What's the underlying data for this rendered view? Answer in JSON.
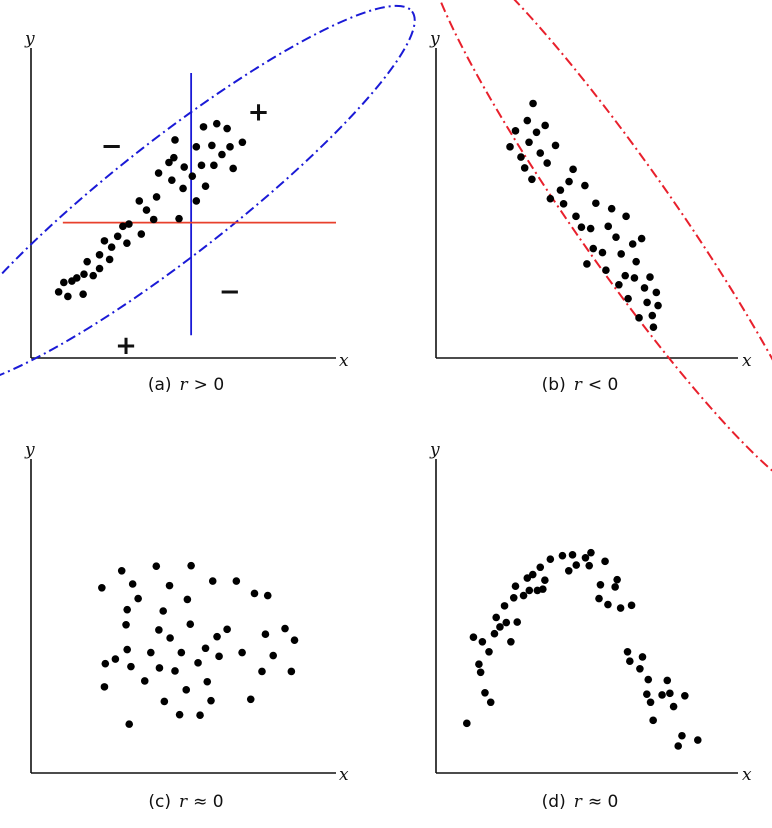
{
  "chart_data": [
    {
      "type": "scatter",
      "panel_label": "(a)",
      "caption_var": "r",
      "caption_relation": "> 0",
      "xlabel": "x",
      "ylabel": "y",
      "xlim": [
        0,
        100
      ],
      "ylim": [
        0,
        100
      ],
      "ellipse": {
        "color": "#1a1ad6",
        "style": "dash-dot",
        "cx": 50.1,
        "cy": 56.7,
        "rx": 64,
        "ry": 13,
        "angle": -38
      },
      "vline": {
        "x": 55.6,
        "color": "#1a1ad6",
        "y0": 8,
        "y1": 100
      },
      "hline": {
        "y": 47.5,
        "color": "#e8402c",
        "x0": 18,
        "x1": 100
      },
      "quadrant_signs": [
        {
          "text": "+",
          "x": 79,
          "y": 86
        },
        {
          "text": "−",
          "x": 28,
          "y": 74
        },
        {
          "text": "−",
          "x": 69,
          "y": 23
        },
        {
          "text": "+",
          "x": 33,
          "y": 4
        }
      ],
      "points": [
        [
          9.6,
          23.2
        ],
        [
          11.4,
          26.5
        ],
        [
          12.8,
          21.6
        ],
        [
          14.2,
          27.0
        ],
        [
          15.9,
          28.1
        ],
        [
          18.1,
          22.4
        ],
        [
          18.4,
          29.4
        ],
        [
          19.5,
          33.8
        ],
        [
          21.6,
          28.9
        ],
        [
          23.8,
          31.4
        ],
        [
          23.8,
          36.2
        ],
        [
          25.5,
          41.1
        ],
        [
          27.3,
          34.6
        ],
        [
          28.0,
          38.9
        ],
        [
          30.1,
          42.7
        ],
        [
          31.9,
          46.2
        ],
        [
          33.3,
          40.3
        ],
        [
          34.0,
          47.0
        ],
        [
          37.6,
          55.1
        ],
        [
          38.3,
          43.5
        ],
        [
          40.1,
          51.9
        ],
        [
          42.6,
          48.6
        ],
        [
          43.6,
          56.5
        ],
        [
          44.3,
          64.9
        ],
        [
          47.9,
          68.6
        ],
        [
          48.9,
          62.4
        ],
        [
          49.6,
          70.3
        ],
        [
          50.0,
          76.5
        ],
        [
          51.4,
          48.9
        ],
        [
          52.8,
          59.5
        ],
        [
          53.2,
          67.0
        ],
        [
          56.0,
          63.8
        ],
        [
          57.4,
          74.1
        ],
        [
          57.4,
          55.1
        ],
        [
          59.2,
          67.6
        ],
        [
          59.9,
          81.1
        ],
        [
          60.6,
          60.3
        ],
        [
          62.8,
          74.6
        ],
        [
          63.5,
          67.6
        ],
        [
          64.5,
          82.2
        ],
        [
          66.3,
          71.4
        ],
        [
          68.1,
          80.5
        ],
        [
          69.1,
          74.1
        ],
        [
          70.2,
          66.5
        ],
        [
          73.4,
          75.7
        ]
      ]
    },
    {
      "type": "scatter",
      "panel_label": "(b)",
      "caption_var": "r",
      "caption_relation": "< 0",
      "xlabel": "x",
      "ylabel": "y",
      "xlim": [
        0,
        100
      ],
      "ylim": [
        0,
        100
      ],
      "ellipse": {
        "color": "#e8202c",
        "style": "dash-dot",
        "cx": 65.5,
        "cy": 49.5,
        "rx": 72,
        "ry": 11,
        "angle": 55
      },
      "points": [
        [
          25.7,
          74.1
        ],
        [
          27.6,
          79.7
        ],
        [
          29.5,
          70.5
        ],
        [
          30.8,
          66.7
        ],
        [
          31.7,
          83.3
        ],
        [
          32.3,
          75.7
        ],
        [
          33.7,
          89.3
        ],
        [
          33.3,
          62.7
        ],
        [
          34.9,
          79.2
        ],
        [
          36.2,
          71.9
        ],
        [
          37.9,
          81.6
        ],
        [
          38.6,
          68.4
        ],
        [
          39.7,
          55.9
        ],
        [
          41.5,
          74.6
        ],
        [
          43.2,
          58.9
        ],
        [
          44.3,
          54.1
        ],
        [
          46.2,
          61.9
        ],
        [
          47.6,
          66.2
        ],
        [
          48.6,
          49.7
        ],
        [
          50.5,
          45.9
        ],
        [
          51.7,
          60.5
        ],
        [
          52.4,
          33.0
        ],
        [
          53.7,
          45.4
        ],
        [
          54.6,
          38.4
        ],
        [
          55.5,
          54.3
        ],
        [
          57.8,
          37.0
        ],
        [
          59.0,
          30.8
        ],
        [
          59.8,
          46.2
        ],
        [
          61.0,
          52.4
        ],
        [
          62.5,
          42.4
        ],
        [
          63.5,
          25.7
        ],
        [
          64.3,
          36.5
        ],
        [
          65.7,
          28.9
        ],
        [
          66.0,
          49.7
        ],
        [
          66.7,
          20.8
        ],
        [
          68.3,
          40.0
        ],
        [
          68.9,
          28.1
        ],
        [
          69.5,
          33.8
        ],
        [
          70.5,
          14.1
        ],
        [
          71.4,
          41.9
        ],
        [
          72.4,
          24.6
        ],
        [
          73.3,
          19.5
        ],
        [
          74.3,
          28.4
        ],
        [
          75.1,
          14.9
        ],
        [
          75.5,
          10.8
        ],
        [
          76.5,
          23.0
        ],
        [
          77.1,
          18.4
        ]
      ]
    },
    {
      "type": "scatter",
      "panel_label": "(c)",
      "caption_var": "r",
      "caption_relation": "≈ 0",
      "xlabel": "x",
      "ylabel": "y",
      "xlim": [
        0,
        100
      ],
      "ylim": [
        0,
        100
      ],
      "points": [
        [
          24.6,
          68.6
        ],
        [
          25.8,
          40.5
        ],
        [
          25.5,
          31.9
        ],
        [
          29.3,
          42.2
        ],
        [
          31.5,
          74.9
        ],
        [
          33.0,
          54.9
        ],
        [
          33.4,
          45.7
        ],
        [
          33.4,
          60.5
        ],
        [
          34.1,
          18.1
        ],
        [
          34.7,
          39.4
        ],
        [
          35.3,
          70.0
        ],
        [
          37.2,
          64.6
        ],
        [
          39.5,
          34.1
        ],
        [
          41.6,
          44.6
        ],
        [
          43.5,
          76.6
        ],
        [
          44.4,
          53.0
        ],
        [
          44.6,
          38.9
        ],
        [
          45.9,
          60.0
        ],
        [
          46.3,
          26.5
        ],
        [
          48.1,
          69.4
        ],
        [
          48.3,
          50.0
        ],
        [
          50.0,
          37.8
        ],
        [
          51.6,
          21.6
        ],
        [
          52.2,
          44.6
        ],
        [
          53.9,
          30.8
        ],
        [
          54.3,
          64.3
        ],
        [
          55.3,
          55.1
        ],
        [
          55.6,
          76.8
        ],
        [
          58.0,
          40.8
        ],
        [
          58.7,
          21.4
        ],
        [
          60.6,
          46.2
        ],
        [
          61.2,
          33.8
        ],
        [
          62.5,
          26.8
        ],
        [
          63.1,
          71.1
        ],
        [
          64.6,
          50.5
        ],
        [
          65.3,
          43.2
        ],
        [
          68.1,
          53.2
        ],
        [
          71.3,
          71.1
        ],
        [
          73.3,
          44.6
        ],
        [
          76.3,
          27.3
        ],
        [
          77.6,
          66.5
        ],
        [
          80.2,
          37.6
        ],
        [
          81.4,
          51.4
        ],
        [
          82.2,
          65.7
        ],
        [
          84.1,
          43.5
        ],
        [
          88.2,
          53.5
        ],
        [
          90.4,
          37.6
        ],
        [
          91.5,
          49.2
        ]
      ]
    },
    {
      "type": "scatter",
      "panel_label": "(d)",
      "caption_var": "r",
      "caption_relation": "≈ 0",
      "xlabel": "x",
      "ylabel": "y",
      "xlim": [
        0,
        100
      ],
      "ylim": [
        0,
        100
      ],
      "points": [
        [
          10.7,
          18.4
        ],
        [
          13.0,
          50.3
        ],
        [
          14.9,
          40.3
        ],
        [
          15.5,
          37.3
        ],
        [
          16.1,
          48.6
        ],
        [
          17.0,
          29.7
        ],
        [
          18.4,
          44.9
        ],
        [
          19.0,
          26.2
        ],
        [
          20.3,
          51.6
        ],
        [
          20.9,
          57.6
        ],
        [
          22.2,
          54.1
        ],
        [
          23.8,
          61.9
        ],
        [
          24.4,
          55.7
        ],
        [
          26.0,
          48.6
        ],
        [
          27.0,
          64.9
        ],
        [
          27.6,
          69.2
        ],
        [
          28.2,
          55.9
        ],
        [
          30.4,
          65.7
        ],
        [
          31.7,
          72.2
        ],
        [
          32.4,
          67.6
        ],
        [
          33.6,
          73.5
        ],
        [
          35.2,
          67.6
        ],
        [
          36.2,
          76.2
        ],
        [
          37.1,
          68.1
        ],
        [
          37.8,
          71.4
        ],
        [
          39.7,
          79.2
        ],
        [
          43.9,
          80.5
        ],
        [
          46.1,
          74.9
        ],
        [
          47.4,
          80.8
        ],
        [
          48.7,
          77.0
        ],
        [
          51.9,
          79.7
        ],
        [
          53.2,
          76.8
        ],
        [
          53.8,
          81.6
        ],
        [
          56.6,
          64.6
        ],
        [
          57.1,
          69.7
        ],
        [
          58.7,
          78.4
        ],
        [
          59.7,
          62.4
        ],
        [
          62.2,
          68.9
        ],
        [
          62.9,
          71.6
        ],
        [
          64.1,
          61.1
        ],
        [
          66.5,
          44.9
        ],
        [
          67.3,
          41.4
        ],
        [
          67.9,
          62.1
        ],
        [
          70.8,
          38.6
        ],
        [
          71.7,
          43.0
        ],
        [
          73.2,
          29.2
        ],
        [
          73.7,
          34.6
        ],
        [
          74.5,
          26.2
        ],
        [
          75.4,
          19.5
        ],
        [
          78.5,
          28.9
        ],
        [
          80.3,
          34.3
        ],
        [
          81.2,
          29.5
        ],
        [
          82.5,
          24.6
        ],
        [
          84.1,
          10.0
        ],
        [
          85.4,
          13.8
        ],
        [
          86.4,
          28.6
        ],
        [
          90.9,
          12.2
        ]
      ]
    }
  ]
}
